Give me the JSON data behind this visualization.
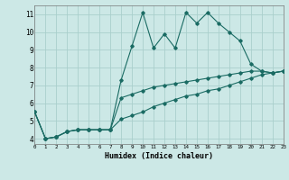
{
  "xlabel": "Humidex (Indice chaleur)",
  "background_color": "#cce8e6",
  "grid_color": "#aacfcc",
  "line_color": "#1a6b63",
  "series": [
    {
      "x": [
        0,
        1,
        2,
        3,
        4,
        5,
        6,
        7,
        8,
        9,
        10,
        11,
        12,
        13,
        14,
        15,
        16,
        17,
        18,
        19,
        20,
        21,
        22,
        23
      ],
      "y": [
        5.5,
        4.0,
        4.1,
        4.4,
        4.5,
        4.5,
        4.5,
        4.5,
        7.3,
        9.2,
        11.1,
        9.1,
        9.9,
        9.1,
        11.1,
        10.5,
        11.1,
        10.5,
        10.0,
        9.5,
        8.2,
        7.8,
        7.7,
        7.8
      ]
    },
    {
      "x": [
        0,
        1,
        2,
        3,
        4,
        5,
        6,
        7,
        8,
        9,
        10,
        11,
        12,
        13,
        14,
        15,
        16,
        17,
        18,
        19,
        20,
        21,
        22,
        23
      ],
      "y": [
        5.5,
        4.0,
        4.1,
        4.4,
        4.5,
        4.5,
        4.5,
        4.5,
        6.3,
        6.5,
        6.7,
        6.9,
        7.0,
        7.1,
        7.2,
        7.3,
        7.4,
        7.5,
        7.6,
        7.7,
        7.8,
        7.8,
        7.7,
        7.8
      ]
    },
    {
      "x": [
        0,
        1,
        2,
        3,
        4,
        5,
        6,
        7,
        8,
        9,
        10,
        11,
        12,
        13,
        14,
        15,
        16,
        17,
        18,
        19,
        20,
        21,
        22,
        23
      ],
      "y": [
        5.5,
        4.0,
        4.1,
        4.4,
        4.5,
        4.5,
        4.5,
        4.5,
        5.1,
        5.3,
        5.5,
        5.8,
        6.0,
        6.2,
        6.4,
        6.5,
        6.7,
        6.8,
        7.0,
        7.2,
        7.4,
        7.6,
        7.7,
        7.8
      ]
    }
  ],
  "xlim": [
    0,
    23
  ],
  "ylim": [
    3.7,
    11.5
  ],
  "yticks": [
    4,
    5,
    6,
    7,
    8,
    9,
    10,
    11
  ],
  "xticks": [
    0,
    1,
    2,
    3,
    4,
    5,
    6,
    7,
    8,
    9,
    10,
    11,
    12,
    13,
    14,
    15,
    16,
    17,
    18,
    19,
    20,
    21,
    22,
    23
  ],
  "xtick_labels": [
    "0",
    "1",
    "2",
    "3",
    "4",
    "5",
    "6",
    "7",
    "8",
    "9",
    "10",
    "11",
    "12",
    "13",
    "14",
    "15",
    "16",
    "17",
    "18",
    "19",
    "20",
    "21",
    "22",
    "23"
  ]
}
